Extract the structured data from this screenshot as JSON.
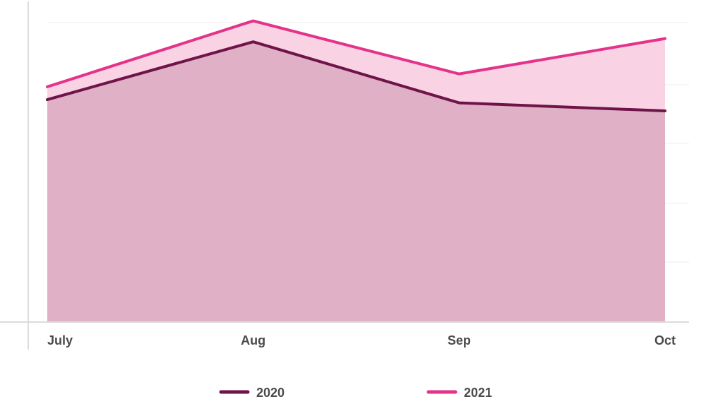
{
  "chart_data": {
    "type": "area",
    "categories": [
      "July",
      "Aug",
      "Sep",
      "Oct"
    ],
    "series": [
      {
        "name": "2020",
        "values": [
          69,
          87,
          68,
          65.5
        ],
        "color": "#6f1448",
        "fill": "#dfb0c6"
      },
      {
        "name": "2021",
        "values": [
          73,
          93.5,
          77,
          88
        ],
        "color": "#e3338a",
        "fill": "#f9d2e4"
      }
    ],
    "ylim": [
      0,
      100
    ],
    "grid": true,
    "legend_position": "bottom",
    "title": "",
    "xlabel": "",
    "ylabel": ""
  }
}
